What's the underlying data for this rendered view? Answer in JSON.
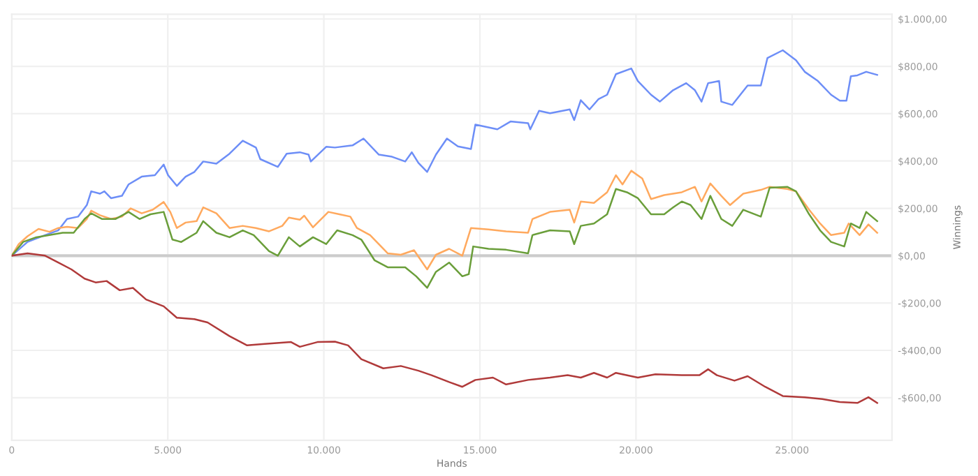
{
  "chart_data": {
    "type": "line",
    "xlabel": "Hands",
    "ylabel": "Winnings",
    "xlim": [
      0,
      28200
    ],
    "ylim": [
      -780,
      1020
    ],
    "xticks": [
      0,
      {
        "value": 5000,
        "label": "5.000"
      },
      {
        "value": 10000,
        "label": "10.000"
      },
      {
        "value": 15000,
        "label": "15.000"
      },
      {
        "value": 20000,
        "label": "20.000"
      },
      {
        "value": 25000,
        "label": "25.000"
      }
    ],
    "yticks": [
      {
        "value": -600,
        "label": "-$600,00"
      },
      {
        "value": -400,
        "label": "-$400,00"
      },
      {
        "value": -200,
        "label": "-$200,00"
      },
      {
        "value": 0,
        "label": "$0,00"
      },
      {
        "value": 200,
        "label": "$200,00"
      },
      {
        "value": 400,
        "label": "$400,00"
      },
      {
        "value": 600,
        "label": "$600,00"
      },
      {
        "value": 800,
        "label": "$800,00"
      },
      {
        "value": 1000,
        "label": "$1.000,00"
      }
    ],
    "grid": true,
    "marker": "none",
    "line_style": "solid",
    "ref_lines": [
      {
        "axis": "y",
        "value": 0,
        "color": "#cccccc"
      }
    ],
    "series": [
      {
        "color": "#6d8ef7",
        "x": [
          0,
          506,
          1069,
          1491,
          1773,
          2124,
          2406,
          2546,
          2828,
          2968,
          3180,
          3531,
          3742,
          4164,
          4587,
          4868,
          5009,
          5290,
          5571,
          5853,
          6134,
          6556,
          6978,
          7401,
          7823,
          7963,
          8526,
          8808,
          9230,
          9511,
          9582,
          10074,
          10355,
          10918,
          11270,
          11762,
          12184,
          12606,
          12817,
          13029,
          13310,
          13591,
          13943,
          14295,
          14713,
          14854,
          15558,
          15980,
          16543,
          16613,
          16894,
          17246,
          17879,
          18020,
          18231,
          18512,
          18794,
          19075,
          19357,
          19849,
          20060,
          20482,
          20764,
          21186,
          21608,
          21889,
          22100,
          22311,
          22663,
          22733,
          23085,
          23577,
          24000,
          24211,
          24703,
          25125,
          25406,
          25828,
          26250,
          26532,
          26743,
          26883,
          27094,
          27376,
          27728
        ],
        "values": [
          0,
          58,
          87,
          107,
          155,
          165,
          214,
          272,
          262,
          272,
          243,
          253,
          301,
          334,
          340,
          385,
          340,
          295,
          334,
          354,
          398,
          389,
          431,
          486,
          457,
          408,
          375,
          431,
          437,
          427,
          398,
          460,
          457,
          466,
          495,
          427,
          418,
          398,
          437,
          392,
          354,
          427,
          495,
          462,
          451,
          554,
          534,
          567,
          560,
          534,
          612,
          602,
          618,
          573,
          657,
          618,
          661,
          680,
          767,
          791,
          738,
          680,
          651,
          699,
          729,
          699,
          651,
          729,
          738,
          651,
          637,
          719,
          719,
          835,
          868,
          826,
          777,
          738,
          680,
          655,
          655,
          758,
          762,
          777,
          764
        ]
      },
      {
        "color": "#ffa95e",
        "x": [
          0,
          225,
          506,
          858,
          1210,
          1491,
          1773,
          2124,
          2406,
          2546,
          2828,
          3180,
          3531,
          3812,
          4164,
          4516,
          4868,
          5079,
          5290,
          5571,
          5923,
          6134,
          6556,
          6978,
          7401,
          7823,
          8245,
          8667,
          8878,
          9230,
          9371,
          9652,
          10144,
          10496,
          10848,
          11059,
          11481,
          12044,
          12466,
          12888,
          13310,
          13591,
          14013,
          14436,
          14713,
          15276,
          15839,
          16543,
          16683,
          17246,
          17879,
          18020,
          18231,
          18653,
          19075,
          19357,
          19568,
          19849,
          20201,
          20482,
          20904,
          21467,
          21889,
          22100,
          22382,
          22733,
          23015,
          23437,
          24000,
          24281,
          24844,
          25125,
          25547,
          25899,
          26250,
          26672,
          26813,
          27165,
          27447,
          27728
        ],
        "values": [
          0,
          49,
          82,
          113,
          101,
          117,
          122,
          117,
          155,
          190,
          171,
          155,
          165,
          200,
          179,
          194,
          227,
          185,
          117,
          140,
          146,
          204,
          179,
          117,
          126,
          117,
          103,
          126,
          161,
          152,
          169,
          120,
          185,
          175,
          165,
          117,
          87,
          10,
          4,
          23,
          -58,
          4,
          29,
          0,
          117,
          111,
          103,
          97,
          155,
          185,
          194,
          140,
          229,
          223,
          268,
          340,
          301,
          359,
          326,
          239,
          256,
          268,
          291,
          229,
          305,
          253,
          214,
          262,
          278,
          291,
          282,
          272,
          194,
          136,
          87,
          97,
          136,
          87,
          132,
          97
        ]
      },
      {
        "color": "#6a9e3a",
        "x": [
          0,
          366,
          788,
          1210,
          1632,
          1984,
          2335,
          2546,
          2898,
          3320,
          3742,
          4094,
          4446,
          4868,
          5149,
          5431,
          5923,
          6134,
          6556,
          6978,
          7401,
          7752,
          8245,
          8526,
          8878,
          9230,
          9652,
          10074,
          10426,
          10918,
          11200,
          11622,
          12044,
          12606,
          12958,
          13310,
          13591,
          14013,
          14436,
          14643,
          14784,
          15276,
          15839,
          16543,
          16683,
          17246,
          17879,
          18020,
          18231,
          18653,
          19075,
          19357,
          19708,
          20060,
          20482,
          20904,
          21186,
          21467,
          21748,
          22100,
          22382,
          22733,
          23085,
          23437,
          24000,
          24281,
          24844,
          25125,
          25547,
          25899,
          26250,
          26672,
          26883,
          27165,
          27376,
          27728
        ],
        "values": [
          0,
          58,
          78,
          87,
          97,
          97,
          155,
          179,
          155,
          155,
          185,
          155,
          175,
          185,
          68,
          58,
          97,
          146,
          97,
          78,
          107,
          87,
          19,
          0,
          78,
          39,
          78,
          49,
          107,
          87,
          68,
          -19,
          -49,
          -49,
          -87,
          -136,
          -68,
          -29,
          -87,
          -78,
          39,
          29,
          25,
          10,
          87,
          107,
          103,
          49,
          126,
          136,
          175,
          282,
          268,
          243,
          175,
          175,
          204,
          229,
          214,
          155,
          253,
          155,
          126,
          194,
          165,
          287,
          291,
          272,
          175,
          107,
          58,
          39,
          136,
          117,
          185,
          146
        ]
      },
      {
        "color": "#b03a3a",
        "x": [
          0,
          506,
          1069,
          1491,
          1913,
          2335,
          2687,
          3039,
          3461,
          3883,
          4305,
          4868,
          5290,
          5853,
          6275,
          6978,
          7541,
          8104,
          8948,
          9230,
          9793,
          10355,
          10777,
          11200,
          11903,
          12466,
          13029,
          13451,
          14013,
          14436,
          14854,
          15417,
          15839,
          16543,
          17246,
          17809,
          18231,
          18653,
          19075,
          19357,
          20060,
          20623,
          21467,
          22030,
          22311,
          22593,
          23155,
          23577,
          24140,
          24703,
          25406,
          25969,
          26532,
          27094,
          27447,
          27728
        ],
        "values": [
          0,
          10,
          0,
          -29,
          -58,
          -97,
          -113,
          -107,
          -146,
          -136,
          -185,
          -214,
          -262,
          -268,
          -282,
          -340,
          -379,
          -373,
          -365,
          -385,
          -365,
          -363,
          -379,
          -437,
          -476,
          -466,
          -486,
          -505,
          -534,
          -554,
          -525,
          -515,
          -544,
          -525,
          -515,
          -505,
          -515,
          -495,
          -515,
          -495,
          -515,
          -501,
          -505,
          -505,
          -480,
          -505,
          -528,
          -509,
          -554,
          -593,
          -598,
          -606,
          -618,
          -622,
          -598,
          -622
        ]
      }
    ]
  }
}
